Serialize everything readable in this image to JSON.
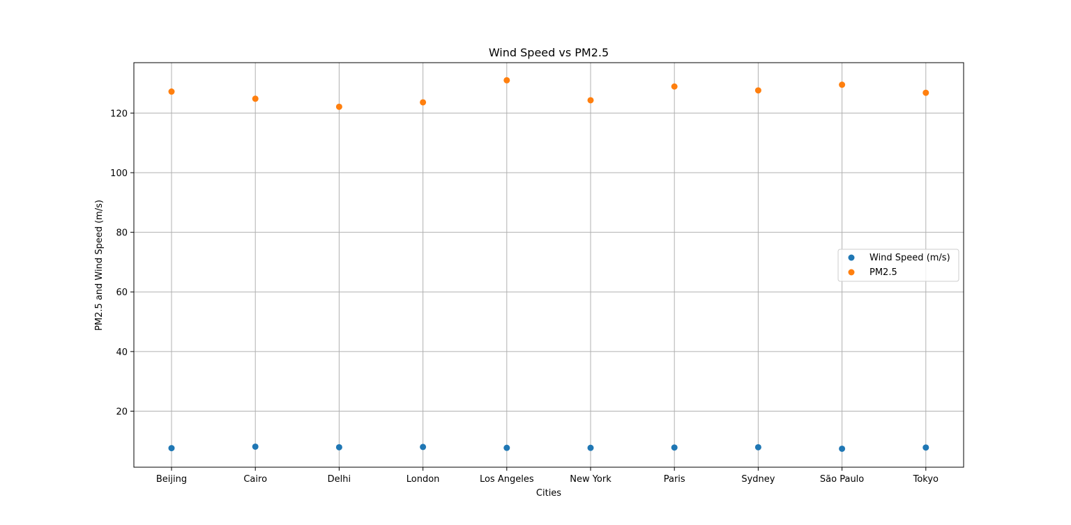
{
  "chart_data": {
    "type": "scatter",
    "title": "Wind Speed vs PM2.5",
    "xlabel": "Cities",
    "ylabel": "PM2.5 and Wind Speed (m/s)",
    "categories": [
      "Beijing",
      "Cairo",
      "Delhi",
      "London",
      "Los Angeles",
      "New York",
      "Paris",
      "Sydney",
      "São Paulo",
      "Tokyo"
    ],
    "series": [
      {
        "name": "Wind Speed (m/s)",
        "color": "#1f77b4",
        "values": [
          7.6,
          8.1,
          7.9,
          8.0,
          7.7,
          7.7,
          7.8,
          7.9,
          7.4,
          7.8
        ]
      },
      {
        "name": "PM2.5",
        "color": "#ff7f0e",
        "values": [
          127.2,
          124.8,
          122.1,
          123.6,
          131.0,
          124.3,
          128.9,
          127.6,
          129.5,
          126.8
        ]
      }
    ],
    "yticks": [
      20,
      40,
      60,
      80,
      100,
      120
    ],
    "ylim": [
      1.2,
      136.9
    ],
    "grid": true,
    "legend_position": "center-right"
  }
}
